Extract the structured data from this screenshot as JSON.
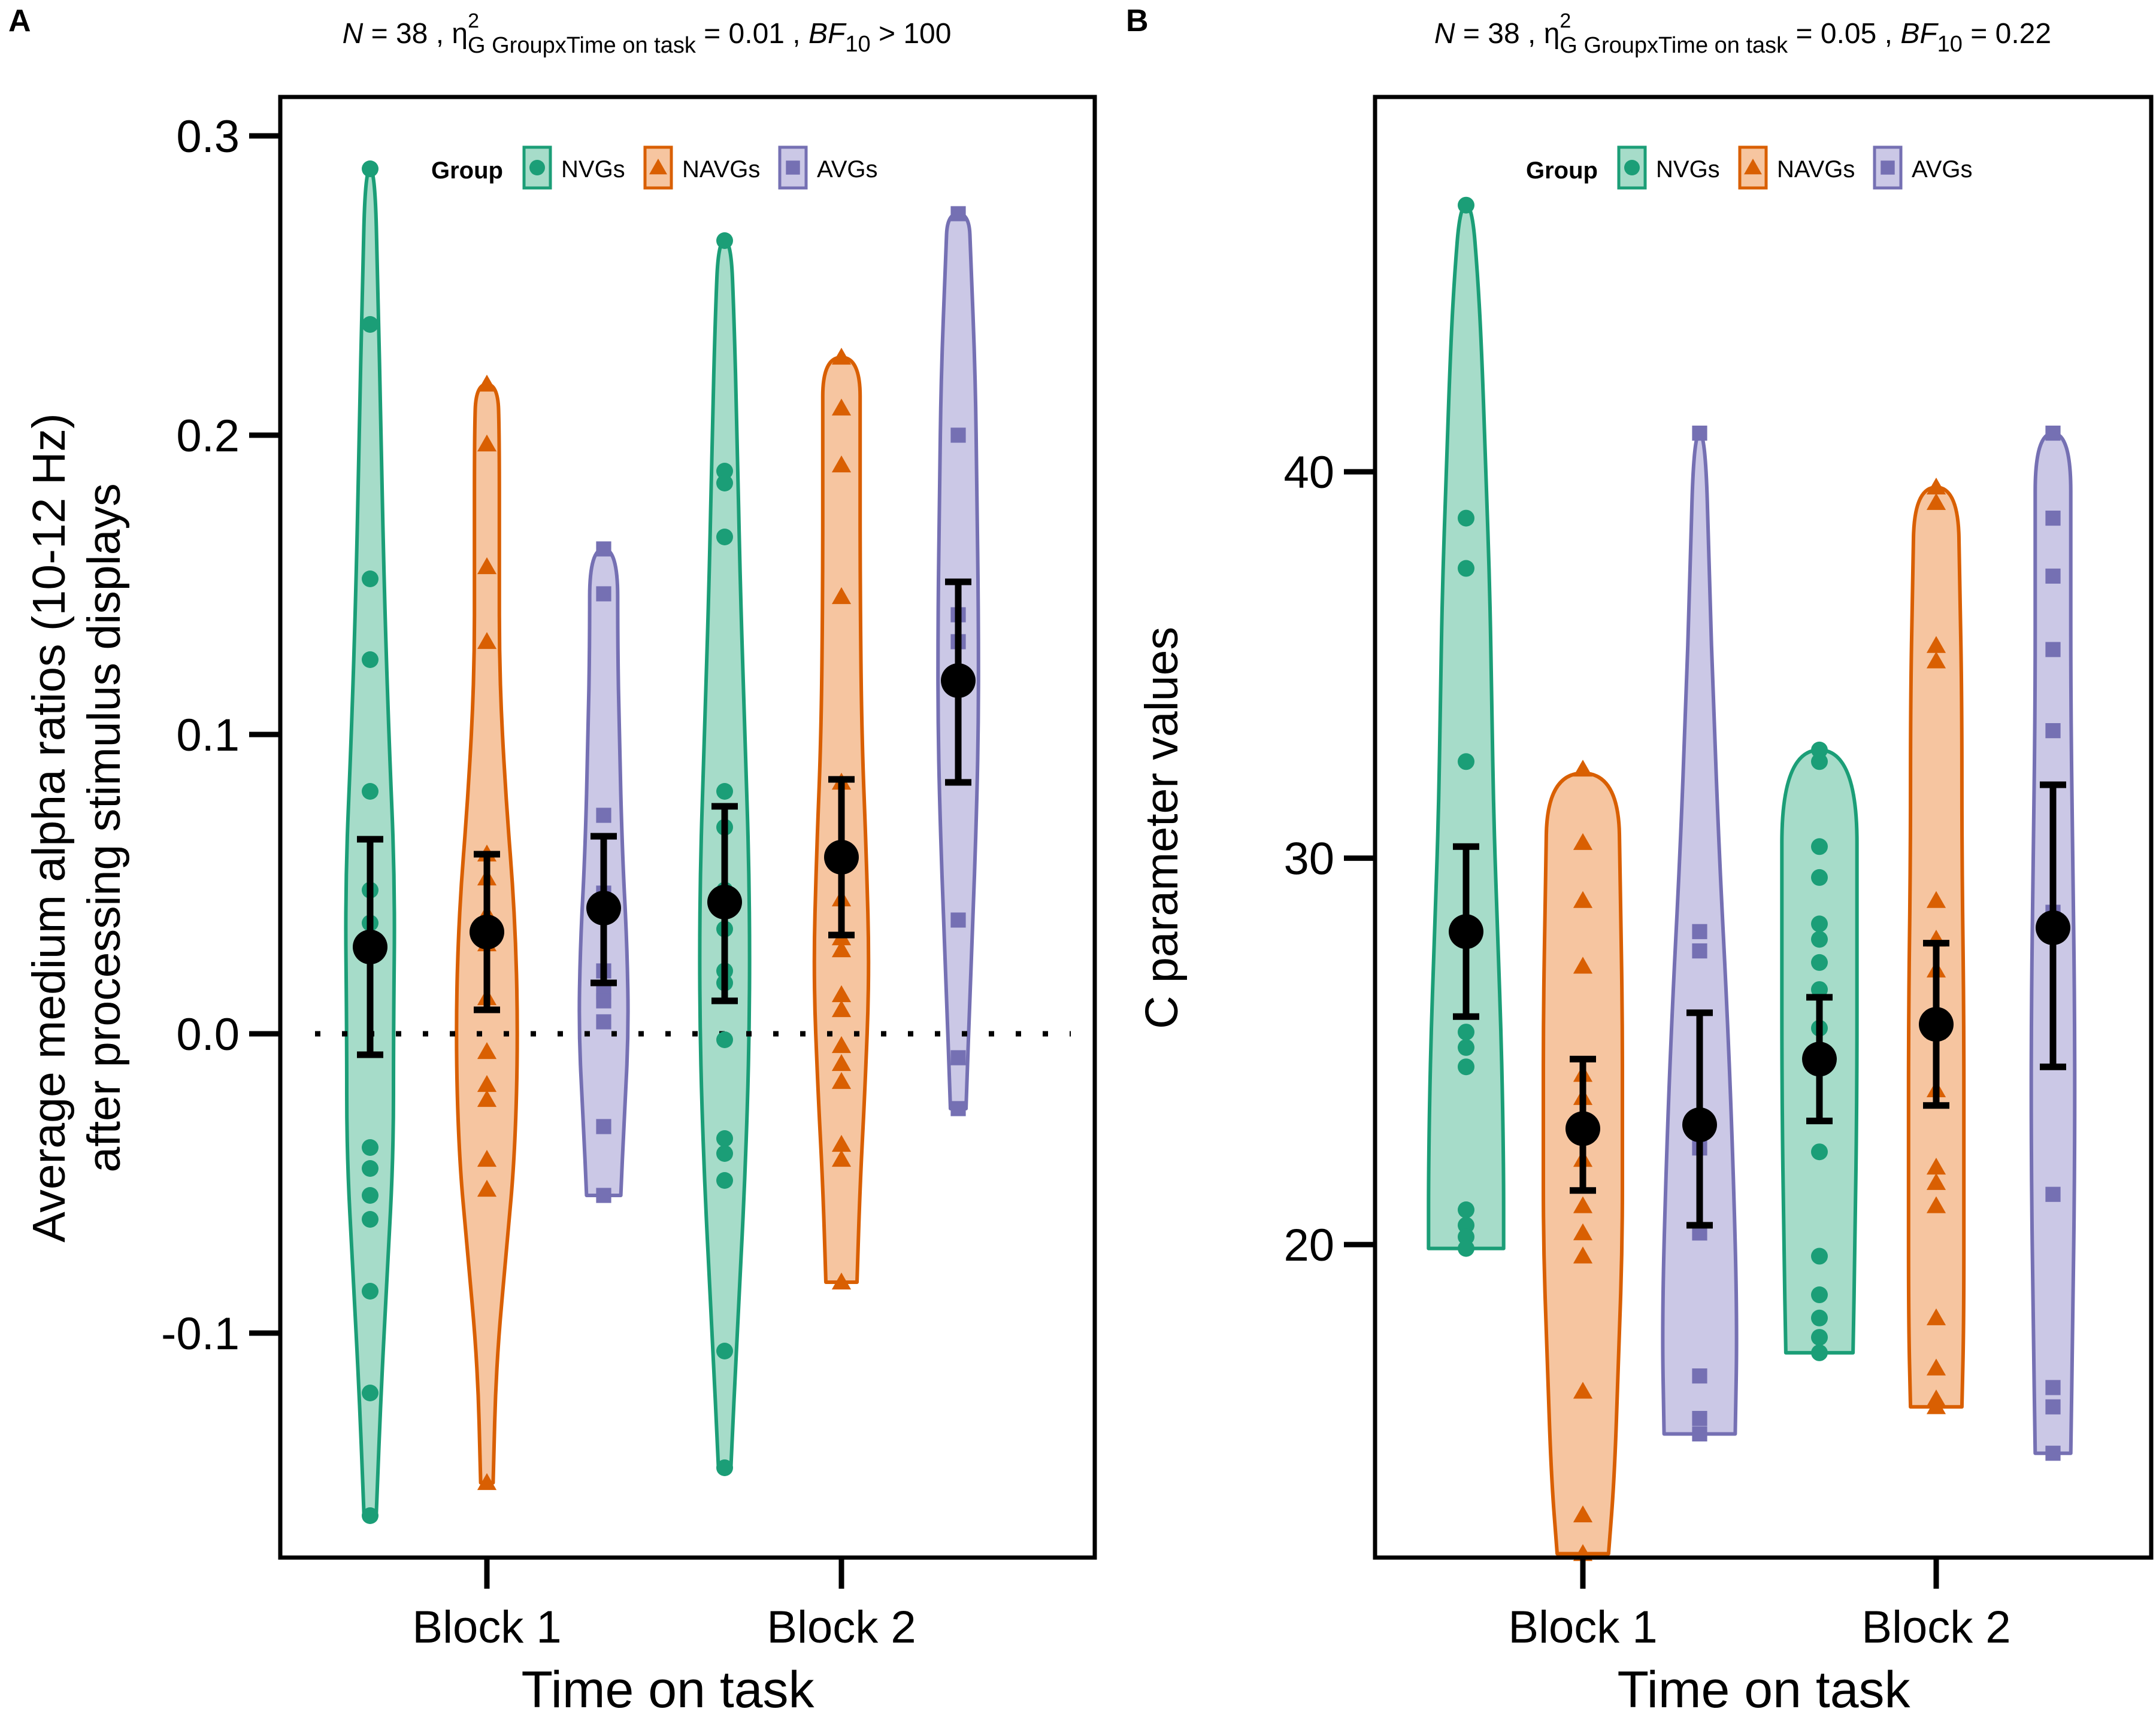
{
  "figure": {
    "panel_a": {
      "letter": "A",
      "subtitle": {
        "n_label": "N",
        "n_value": " = 38 , ",
        "eta": "η",
        "eta_sup": "2",
        "eta_sub": "G GroupxTime on task",
        "eta_value": " = 0.01 , ",
        "bf_label": "BF",
        "bf_sub": "10",
        "bf_value": " > 100"
      }
    },
    "panel_b": {
      "letter": "B",
      "subtitle": {
        "n_label": "N",
        "n_value": " = 38 , ",
        "eta": "η",
        "eta_sup": "2",
        "eta_sub": "G GroupxTime on task",
        "eta_value": " = 0.05 , ",
        "bf_label": "BF",
        "bf_sub": "10",
        "bf_value": " = 0.22"
      }
    },
    "legend": {
      "title": "Group",
      "items": [
        {
          "label": "NVGs",
          "color": "#1b9e77",
          "fill": "#a6dcc9",
          "shape": "circle"
        },
        {
          "label": "NAVGs",
          "color": "#d95f02",
          "fill": "#f6c5a0",
          "shape": "triangle"
        },
        {
          "label": "AVGs",
          "color": "#7570b3",
          "fill": "#cbc8e6",
          "shape": "square"
        }
      ]
    }
  },
  "chart_data": [
    {
      "type": "violin",
      "panel": "A",
      "ylabel_line1": "Average medium alpha ratios (10-12 Hz)",
      "ylabel_line2": "after processing stimulus displays",
      "xlabel": "Time on task",
      "categories": [
        "Block 1",
        "Block 2"
      ],
      "ylim": [
        -0.175,
        0.313
      ],
      "yticks": [
        -0.1,
        0.0,
        0.1,
        0.2,
        0.3
      ],
      "ytick_labels": [
        "-0.1",
        "0.0",
        "0.1",
        "0.2",
        "0.3"
      ],
      "reference_line": 0.0,
      "groups": [
        {
          "block": "Block 1",
          "group": "NVGs",
          "points": [
            0.289,
            0.237,
            0.152,
            0.125,
            0.081,
            0.048,
            0.037,
            -0.038,
            -0.045,
            -0.054,
            -0.062,
            -0.086,
            -0.12,
            -0.161
          ],
          "mean": 0.029,
          "ci": [
            -0.007,
            0.065
          ],
          "violin": [
            [
              -0.16,
              0.004
            ],
            [
              -0.12,
              0.007
            ],
            [
              -0.08,
              0.011
            ],
            [
              -0.04,
              0.015
            ],
            [
              0.0,
              0.015
            ],
            [
              0.05,
              0.016
            ],
            [
              0.1,
              0.012
            ],
            [
              0.15,
              0.009
            ],
            [
              0.2,
              0.007
            ],
            [
              0.25,
              0.005
            ],
            [
              0.289,
              0.003
            ]
          ]
        },
        {
          "block": "Block 1",
          "group": "NAVGs",
          "points": [
            0.217,
            0.197,
            0.156,
            0.131,
            0.06,
            0.052,
            0.04,
            0.03,
            0.012,
            -0.006,
            -0.017,
            -0.022,
            -0.042,
            -0.052,
            -0.15
          ],
          "mean": 0.034,
          "ci": [
            0.008,
            0.06
          ],
          "violin": [
            [
              -0.15,
              0.004
            ],
            [
              -0.11,
              0.006
            ],
            [
              -0.07,
              0.013
            ],
            [
              -0.04,
              0.018
            ],
            [
              0.0,
              0.02
            ],
            [
              0.04,
              0.018
            ],
            [
              0.08,
              0.012
            ],
            [
              0.12,
              0.008
            ],
            [
              0.16,
              0.008
            ],
            [
              0.2,
              0.008
            ],
            [
              0.217,
              0.007
            ]
          ]
        },
        {
          "block": "Block 1",
          "group": "AVGs",
          "points": [
            0.162,
            0.147,
            0.073,
            0.047,
            0.021,
            0.014,
            0.011,
            0.004,
            -0.031,
            -0.054
          ],
          "mean": 0.042,
          "ci": [
            0.017,
            0.066
          ],
          "violin": [
            [
              -0.054,
              0.011
            ],
            [
              -0.03,
              0.013
            ],
            [
              0.0,
              0.016
            ],
            [
              0.03,
              0.015
            ],
            [
              0.06,
              0.012
            ],
            [
              0.1,
              0.01
            ],
            [
              0.13,
              0.009
            ],
            [
              0.162,
              0.009
            ]
          ]
        },
        {
          "block": "Block 2",
          "group": "NVGs",
          "points": [
            0.265,
            0.188,
            0.184,
            0.166,
            0.081,
            0.069,
            0.048,
            0.035,
            0.021,
            0.017,
            -0.002,
            -0.035,
            -0.04,
            -0.049,
            -0.106,
            -0.145
          ],
          "mean": 0.044,
          "ci": [
            0.011,
            0.076
          ],
          "violin": [
            [
              -0.145,
              0.004
            ],
            [
              -0.1,
              0.008
            ],
            [
              -0.05,
              0.013
            ],
            [
              0.0,
              0.016
            ],
            [
              0.05,
              0.016
            ],
            [
              0.1,
              0.013
            ],
            [
              0.15,
              0.01
            ],
            [
              0.2,
              0.008
            ],
            [
              0.24,
              0.006
            ],
            [
              0.265,
              0.004
            ]
          ]
        },
        {
          "block": "Block 2",
          "group": "NAVGs",
          "points": [
            0.226,
            0.209,
            0.19,
            0.146,
            0.084,
            0.045,
            0.032,
            0.028,
            0.013,
            0.008,
            -0.004,
            -0.01,
            -0.016,
            -0.037,
            -0.042,
            -0.083
          ],
          "mean": 0.059,
          "ci": [
            0.033,
            0.085
          ],
          "violin": [
            [
              -0.083,
              0.01
            ],
            [
              -0.05,
              0.012
            ],
            [
              -0.02,
              0.015
            ],
            [
              0.02,
              0.018
            ],
            [
              0.06,
              0.016
            ],
            [
              0.1,
              0.013
            ],
            [
              0.15,
              0.012
            ],
            [
              0.2,
              0.012
            ],
            [
              0.226,
              0.012
            ]
          ]
        },
        {
          "block": "Block 2",
          "group": "AVGs",
          "points": [
            0.274,
            0.2,
            0.14,
            0.131,
            0.119,
            0.038,
            -0.008,
            -0.025
          ],
          "mean": 0.118,
          "ci": [
            0.084,
            0.151
          ],
          "violin": [
            [
              -0.025,
              0.005
            ],
            [
              0.02,
              0.008
            ],
            [
              0.06,
              0.011
            ],
            [
              0.1,
              0.013
            ],
            [
              0.14,
              0.013
            ],
            [
              0.18,
              0.012
            ],
            [
              0.22,
              0.011
            ],
            [
              0.26,
              0.008
            ],
            [
              0.274,
              0.007
            ]
          ]
        }
      ]
    },
    {
      "type": "violin",
      "panel": "B",
      "ylabel": "C parameter values",
      "xlabel": "Time on task",
      "categories": [
        "Block 1",
        "Block 2"
      ],
      "ylim": [
        11.9,
        49.7
      ],
      "yticks": [
        20,
        30,
        40
      ],
      "ytick_labels": [
        "20",
        "30",
        "40"
      ],
      "groups": [
        {
          "block": "Block 1",
          "group": "NVGs",
          "points": [
            46.9,
            38.8,
            37.5,
            32.5,
            25.5,
            25.1,
            24.6,
            20.9,
            20.5,
            20.2,
            19.9
          ],
          "mean": 28.1,
          "ci": [
            25.9,
            30.3
          ],
          "violin": [
            [
              19.9,
              19
            ],
            [
              22,
              19
            ],
            [
              25,
              18
            ],
            [
              28,
              16
            ],
            [
              31,
              14
            ],
            [
              34,
              13
            ],
            [
              37,
              12
            ],
            [
              40,
              10
            ],
            [
              43,
              8
            ],
            [
              45,
              6
            ],
            [
              46.9,
              3
            ]
          ]
        },
        {
          "block": "Block 1",
          "group": "NAVGs",
          "points": [
            32.3,
            30.4,
            28.9,
            27.2,
            24.4,
            23.8,
            22.2,
            21.0,
            20.3,
            19.7,
            16.2,
            13.0,
            12.0
          ],
          "mean": 23.0,
          "ci": [
            21.4,
            24.8
          ],
          "violin": [
            [
              12.0,
              13
            ],
            [
              14,
              16
            ],
            [
              17,
              18
            ],
            [
              20,
              20
            ],
            [
              23,
              20
            ],
            [
              26,
              20
            ],
            [
              29,
              19
            ],
            [
              32.2,
              18
            ]
          ]
        },
        {
          "block": "Block 1",
          "group": "AVGs",
          "points": [
            41.0,
            28.1,
            27.6,
            22.5,
            20.3,
            16.6,
            15.5,
            15.1
          ],
          "mean": 23.1,
          "ci": [
            20.5,
            26.0
          ],
          "violin": [
            [
              15.1,
              18
            ],
            [
              18,
              19
            ],
            [
              22,
              17
            ],
            [
              26,
              14
            ],
            [
              30,
              10
            ],
            [
              34,
              7
            ],
            [
              37,
              5
            ],
            [
              41.0,
              3
            ]
          ]
        },
        {
          "block": "Block 2",
          "group": "NVGs",
          "points": [
            32.8,
            32.5,
            30.3,
            29.5,
            28.3,
            27.9,
            27.3,
            26.6,
            25.6,
            22.4,
            19.7,
            18.7,
            18.1,
            17.6,
            17.2
          ],
          "mean": 24.8,
          "ci": [
            23.2,
            26.4
          ],
          "violin": [
            [
              17.2,
              17
            ],
            [
              20,
              18
            ],
            [
              24,
              19
            ],
            [
              28,
              19
            ],
            [
              32.8,
              19
            ]
          ]
        },
        {
          "block": "Block 2",
          "group": "NAVGs",
          "points": [
            39.6,
            39.2,
            35.5,
            35.1,
            28.9,
            27.9,
            27.1,
            25.5,
            24.0,
            22.0,
            21.6,
            21.0,
            18.1,
            16.8,
            16.0,
            15.8
          ],
          "mean": 25.7,
          "ci": [
            23.6,
            27.8
          ],
          "violin": [
            [
              15.8,
              13
            ],
            [
              18,
              14
            ],
            [
              22,
              14
            ],
            [
              26,
              14
            ],
            [
              30,
              13
            ],
            [
              34,
              13
            ],
            [
              37,
              12
            ],
            [
              39.6,
              11
            ]
          ]
        },
        {
          "block": "Block 2",
          "group": "AVGs",
          "points": [
            41.0,
            38.8,
            37.3,
            35.4,
            33.3,
            28.6,
            21.3,
            16.3,
            15.8,
            14.6
          ],
          "mean": 28.2,
          "ci": [
            24.6,
            31.9
          ],
          "violin": [
            [
              14.6,
              9
            ],
            [
              18,
              10
            ],
            [
              22,
              11
            ],
            [
              26,
              11
            ],
            [
              30,
              10
            ],
            [
              34,
              9
            ],
            [
              38,
              9
            ],
            [
              41.0,
              9
            ]
          ]
        }
      ]
    }
  ]
}
